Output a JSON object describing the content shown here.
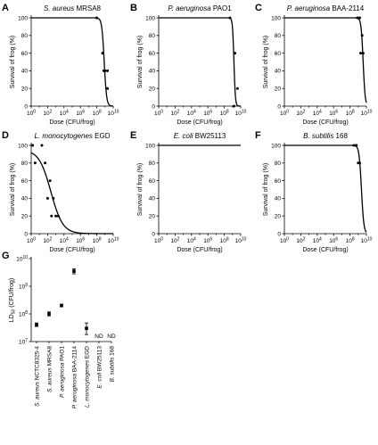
{
  "chart_data": [
    {
      "panel": "A",
      "type": "scatter",
      "title_italic": "S. aureus",
      "title_rest": " MRSA8",
      "xlabel": "Dose (CFU/frog)",
      "ylabel": "Survival of frog (%)",
      "x_scale": "log",
      "xlim": [
        1,
        10000000000
      ],
      "x_ticks": [
        {
          "base": "10",
          "exp": "0"
        },
        {
          "base": "10",
          "exp": "2"
        },
        {
          "base": "10",
          "exp": "4"
        },
        {
          "base": "10",
          "exp": "6"
        },
        {
          "base": "10",
          "exp": "8"
        },
        {
          "base": "10",
          "exp": "10"
        }
      ],
      "ylim": [
        0,
        100
      ],
      "y_ticks": [
        "0",
        "20",
        "40",
        "60",
        "80",
        "100"
      ],
      "points": [
        {
          "x": 100000000,
          "y": 100
        },
        {
          "x": 500000000,
          "y": 60
        },
        {
          "x": 700000000,
          "y": 40
        },
        {
          "x": 1000000000,
          "y": 40
        },
        {
          "x": 2000000000,
          "y": 40
        },
        {
          "x": 2000000000,
          "y": 20
        }
      ],
      "curve": {
        "ld50": 800000000,
        "slope": 3,
        "top": 100
      }
    },
    {
      "panel": "B",
      "type": "scatter",
      "title_italic": "P. aeruginosa",
      "title_rest": " PAO1",
      "xlabel": "Dose (CFU/frog)",
      "ylabel": "Survival of frog (%)",
      "x_scale": "log",
      "xlim": [
        1,
        10000000000
      ],
      "x_ticks": [
        {
          "base": "10",
          "exp": "0"
        },
        {
          "base": "10",
          "exp": "2"
        },
        {
          "base": "10",
          "exp": "4"
        },
        {
          "base": "10",
          "exp": "6"
        },
        {
          "base": "10",
          "exp": "8"
        },
        {
          "base": "10",
          "exp": "10"
        }
      ],
      "ylim": [
        0,
        100
      ],
      "y_ticks": [
        "0",
        "20",
        "40",
        "60",
        "80",
        "100"
      ],
      "points": [
        {
          "x": 500000000,
          "y": 100
        },
        {
          "x": 2000000000,
          "y": 60
        },
        {
          "x": 4000000000,
          "y": 20
        },
        {
          "x": 1500000000,
          "y": 0
        }
      ],
      "curve": {
        "ld50": 1500000000,
        "slope": 5,
        "top": 100
      }
    },
    {
      "panel": "C",
      "type": "scatter",
      "title_italic": "P. aeruginosa",
      "title_rest": " BAA-2114",
      "xlabel": "Dose (CFU/frog)",
      "ylabel": "Survival of frog (%)",
      "x_scale": "log",
      "xlim": [
        1,
        10000000000
      ],
      "x_ticks": [
        {
          "base": "10",
          "exp": "0"
        },
        {
          "base": "10",
          "exp": "2"
        },
        {
          "base": "10",
          "exp": "4"
        },
        {
          "base": "10",
          "exp": "6"
        },
        {
          "base": "10",
          "exp": "8"
        },
        {
          "base": "10",
          "exp": "10"
        }
      ],
      "ylim": [
        0,
        100
      ],
      "y_ticks": [
        "0",
        "20",
        "40",
        "60",
        "80",
        "100"
      ],
      "points": [
        {
          "x": 800000000,
          "y": 100
        },
        {
          "x": 1500000000,
          "y": 100
        },
        {
          "x": 2000000000,
          "y": 60
        },
        {
          "x": 3000000000,
          "y": 80
        },
        {
          "x": 4000000000,
          "y": 60
        }
      ],
      "curve": {
        "ld50": 4000000000,
        "slope": 3.5,
        "top": 100
      }
    },
    {
      "panel": "D",
      "type": "scatter",
      "title_italic": "L. monocytogenes",
      "title_rest": " EGD",
      "xlabel": "Dose (CFU/frog)",
      "ylabel": "Survival of frog (%)",
      "x_scale": "log",
      "xlim": [
        1,
        10000000000
      ],
      "x_ticks": [
        {
          "base": "10",
          "exp": "0"
        },
        {
          "base": "10",
          "exp": "2"
        },
        {
          "base": "10",
          "exp": "4"
        },
        {
          "base": "10",
          "exp": "6"
        },
        {
          "base": "10",
          "exp": "8"
        },
        {
          "base": "10",
          "exp": "10"
        }
      ],
      "ylim": [
        0,
        100
      ],
      "y_ticks": [
        "0",
        "20",
        "40",
        "60",
        "80",
        "100"
      ],
      "points": [
        {
          "x": 1.5,
          "y": 100
        },
        {
          "x": 3,
          "y": 80
        },
        {
          "x": 20,
          "y": 100
        },
        {
          "x": 50,
          "y": 80
        },
        {
          "x": 100,
          "y": 40
        },
        {
          "x": 200,
          "y": 60
        },
        {
          "x": 300,
          "y": 20
        },
        {
          "x": 500,
          "y": 40
        },
        {
          "x": 1000,
          "y": 20
        },
        {
          "x": 2000,
          "y": 20
        }
      ],
      "curve": {
        "ld50": 250,
        "slope": 0.6,
        "top": 95
      }
    },
    {
      "panel": "E",
      "type": "scatter",
      "title_italic": "E. coli",
      "title_rest": " BW25113",
      "xlabel": "Dose (CFU/frog)",
      "ylabel": "Survival of frog (%)",
      "x_scale": "log",
      "xlim": [
        1,
        10000000000
      ],
      "x_ticks": [
        {
          "base": "10",
          "exp": "0"
        },
        {
          "base": "10",
          "exp": "2"
        },
        {
          "base": "10",
          "exp": "4"
        },
        {
          "base": "10",
          "exp": "6"
        },
        {
          "base": "10",
          "exp": "8"
        },
        {
          "base": "10",
          "exp": "10"
        }
      ],
      "ylim": [
        0,
        100
      ],
      "y_ticks": [
        "0",
        "20",
        "40",
        "60",
        "80",
        "100"
      ],
      "points": [],
      "curve": {
        "flat": 100
      }
    },
    {
      "panel": "F",
      "type": "scatter",
      "title_italic": "B. subtilis",
      "title_rest": " 168",
      "xlabel": "Dose (CFU/frog)",
      "ylabel": "Survival of frog (%)",
      "x_scale": "log",
      "xlim": [
        1,
        10000000000
      ],
      "x_ticks": [
        {
          "base": "10",
          "exp": "0"
        },
        {
          "base": "10",
          "exp": "2"
        },
        {
          "base": "10",
          "exp": "4"
        },
        {
          "base": "10",
          "exp": "6"
        },
        {
          "base": "10",
          "exp": "8"
        },
        {
          "base": "10",
          "exp": "10"
        }
      ],
      "ylim": [
        0,
        100
      ],
      "y_ticks": [
        "0",
        "20",
        "40",
        "60",
        "80",
        "100"
      ],
      "points": [
        {
          "x": 300000000,
          "y": 100
        },
        {
          "x": 600000000,
          "y": 100
        },
        {
          "x": 1000000000,
          "y": 80
        },
        {
          "x": 1500000000,
          "y": 80
        }
      ],
      "curve": {
        "ld50": 2500000000,
        "slope": 3,
        "top": 100
      }
    },
    {
      "panel": "G",
      "type": "scatter",
      "ylabel_main": "LD",
      "ylabel_sub": "50",
      "ylabel_rest": " (CFU/frog)",
      "y_scale": "log",
      "ylim": [
        10000000,
        10000000000
      ],
      "y_ticks": [
        {
          "base": "10",
          "exp": "7"
        },
        {
          "base": "10",
          "exp": "8"
        },
        {
          "base": "10",
          "exp": "9"
        },
        {
          "base": "10",
          "exp": "10"
        }
      ],
      "categories": [
        {
          "italic": "S. aureus",
          "rest": " NCTC8325-4"
        },
        {
          "italic": "S. aureus",
          "rest": " MRSA8"
        },
        {
          "italic": "P. aeruginosa",
          "rest": " PAO1"
        },
        {
          "italic": "P. aeruginosa",
          "rest": " BAA-2114"
        },
        {
          "italic": "L. monocytogenes",
          "rest": " EGD"
        },
        {
          "italic": "E. coli",
          "rest": " BW25113"
        },
        {
          "italic": "B. subtilis",
          "rest": " 168"
        }
      ],
      "values": [
        40000000,
        100000000,
        200000000,
        3500000000,
        30000000,
        null,
        null
      ],
      "error_low": [
        35000000,
        85000000,
        180000000,
        2800000000,
        18000000,
        null,
        null
      ],
      "error_high": [
        47000000,
        118000000,
        225000000,
        4300000000,
        47000000,
        null,
        null
      ],
      "value_labels": [
        "",
        "",
        "",
        "",
        "",
        "ND",
        "ND"
      ]
    }
  ]
}
